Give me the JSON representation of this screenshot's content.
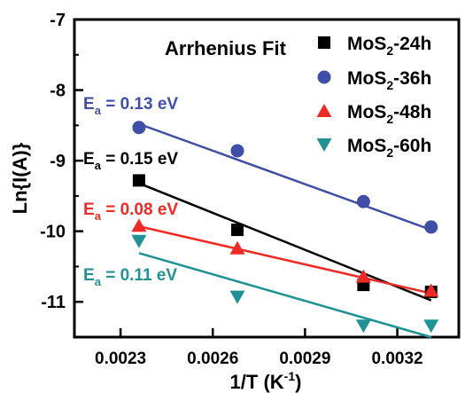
{
  "chart_data": {
    "type": "scatter",
    "title": "Arrhenius Fit",
    "xlabel": "1/T (K",
    "xlabel_sup": "-1",
    "xlabel_tail": ")",
    "ylabel": "Ln{I(A)}",
    "xlim": [
      0.00215,
      0.0034
    ],
    "ylim": [
      -11.5,
      -7
    ],
    "xticks": [
      0.0023,
      0.0026,
      0.0029,
      0.0032
    ],
    "xtick_labels": [
      "0.0023",
      "0.0026",
      "0.0029",
      "0.0032"
    ],
    "yticks": [
      -11,
      -10,
      -9,
      -8,
      -7
    ],
    "ytick_labels": [
      "-11",
      "-10",
      "-9",
      "-8",
      "-7"
    ],
    "legend_position": "top-right",
    "series": [
      {
        "name": "MoS2-24h",
        "label_main": "MoS",
        "label_sub": "2",
        "label_tail": "-24h",
        "marker": "square",
        "color": "#000000",
        "line_color": "#000000",
        "x": [
          0.00236,
          0.00268,
          0.00309,
          0.00331
        ],
        "y": [
          -9.28,
          -9.98,
          -10.76,
          -10.86
        ],
        "fit": {
          "x": [
            0.00236,
            0.00331
          ],
          "y": [
            -9.32,
            -10.98
          ]
        },
        "ea_value": "= 0.15 eV",
        "ea_color": "#000000"
      },
      {
        "name": "MoS2-36h",
        "label_main": "MoS",
        "label_sub": "2",
        "label_tail": "-36h",
        "marker": "circle",
        "color": "#3f4fa8",
        "line_color": "#3f4fa8",
        "x": [
          0.00236,
          0.00268,
          0.00309,
          0.00331
        ],
        "y": [
          -8.53,
          -8.86,
          -9.58,
          -9.94
        ],
        "fit": {
          "x": [
            0.00236,
            0.00331
          ],
          "y": [
            -8.48,
            -9.98
          ]
        },
        "ea_value": "= 0.13 eV",
        "ea_color": "#3f4fa8"
      },
      {
        "name": "MoS2-48h",
        "label_main": "MoS",
        "label_sub": "2",
        "label_tail": "-48h",
        "marker": "triangle-up",
        "color": "#ee2a24",
        "line_color": "#ee2a24",
        "x": [
          0.00236,
          0.00268,
          0.00309,
          0.00331
        ],
        "y": [
          -9.92,
          -10.24,
          -10.64,
          -10.84
        ],
        "fit": {
          "x": [
            0.00236,
            0.00331
          ],
          "y": [
            -9.93,
            -10.88
          ]
        },
        "ea_value": "= 0.08 eV",
        "ea_color": "#ee2a24"
      },
      {
        "name": "MoS2-60h",
        "label_main": "MoS",
        "label_sub": "2",
        "label_tail": "-60h",
        "marker": "triangle-down",
        "color": "#1f9296",
        "line_color": "#1f9296",
        "x": [
          0.00236,
          0.00268,
          0.00309,
          0.00331
        ],
        "y": [
          -10.14,
          -10.93,
          -11.34,
          -11.34
        ],
        "fit": {
          "x": [
            0.00236,
            0.00331
          ],
          "y": [
            -10.31,
            -11.5
          ]
        },
        "ea_value": "= 0.11 eV",
        "ea_color": "#1f9296"
      }
    ],
    "ea_symbol": "E",
    "ea_sub": "a"
  }
}
